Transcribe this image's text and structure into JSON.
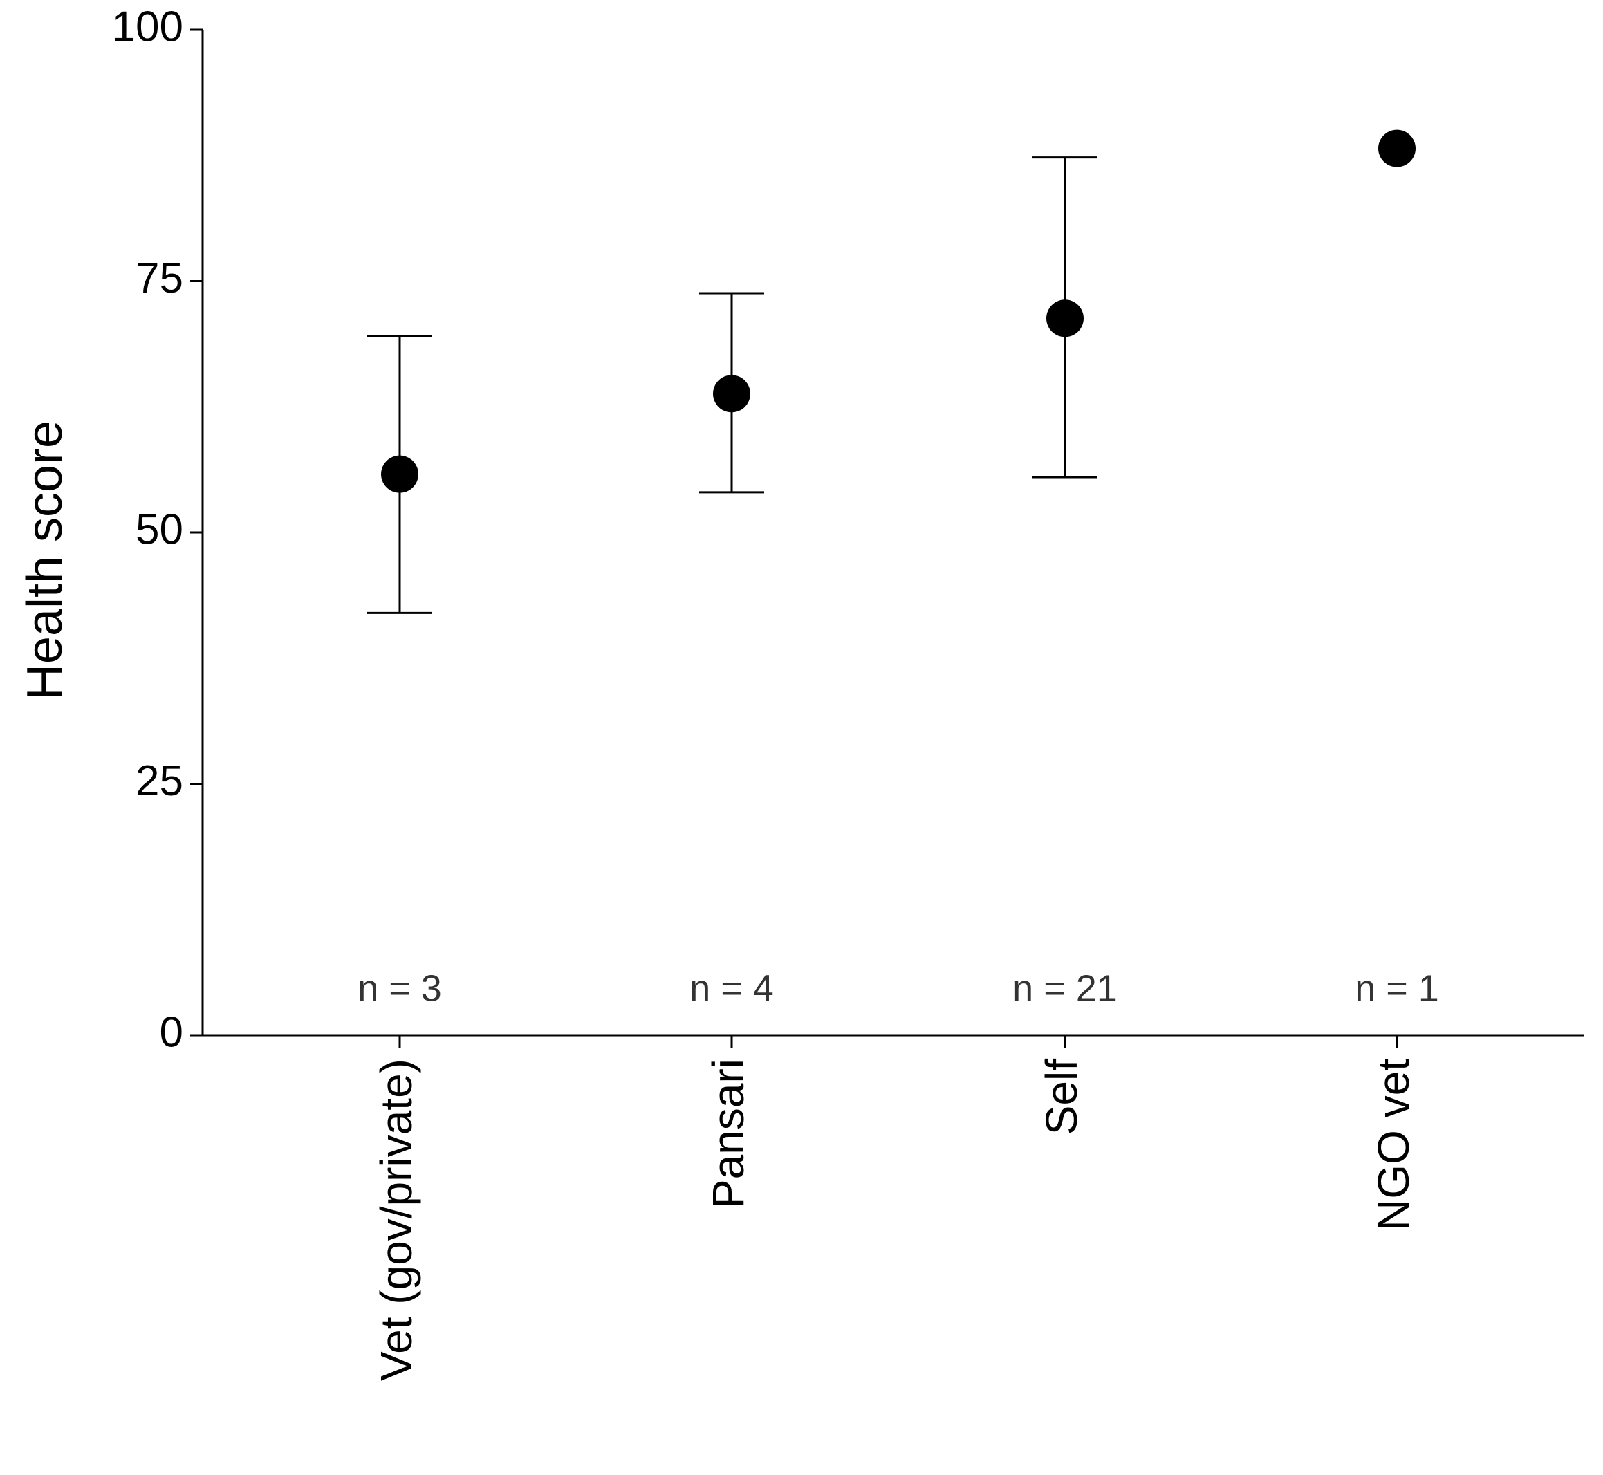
{
  "chart_data": {
    "type": "scatter",
    "title": "",
    "xlabel": "",
    "ylabel": "Health score",
    "ylim": [
      0,
      100
    ],
    "yticks": [
      0,
      25,
      50,
      75,
      100
    ],
    "categories": [
      "Vet (gov/private)",
      "Pansari",
      "Self",
      "NGO vet"
    ],
    "means": [
      55.8,
      63.8,
      71.3,
      88.2
    ],
    "error_low": [
      42.0,
      54.0,
      55.5,
      null
    ],
    "error_high": [
      69.5,
      73.8,
      87.3,
      null
    ],
    "n_labels": [
      "n = 3",
      "n = 4",
      "n = 21",
      "n = 1"
    ],
    "marker_color": "#000000",
    "grid": false,
    "legend": "none"
  }
}
